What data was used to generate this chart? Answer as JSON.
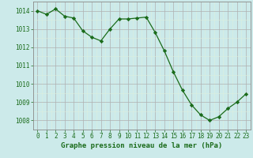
{
  "x": [
    0,
    1,
    2,
    3,
    4,
    5,
    6,
    7,
    8,
    9,
    10,
    11,
    12,
    13,
    14,
    15,
    16,
    17,
    18,
    19,
    20,
    21,
    22,
    23
  ],
  "y": [
    1014.0,
    1013.8,
    1014.1,
    1013.7,
    1013.6,
    1012.9,
    1012.55,
    1012.35,
    1013.0,
    1013.55,
    1013.55,
    1013.6,
    1013.65,
    1012.8,
    1011.8,
    1010.65,
    1009.65,
    1008.85,
    1008.3,
    1008.0,
    1008.2,
    1008.65,
    1009.0,
    1009.45
  ],
  "ylim": [
    1007.5,
    1014.5
  ],
  "yticks": [
    1008,
    1009,
    1010,
    1011,
    1012,
    1013,
    1014
  ],
  "xlim": [
    -0.5,
    23.5
  ],
  "xticks": [
    0,
    1,
    2,
    3,
    4,
    5,
    6,
    7,
    8,
    9,
    10,
    11,
    12,
    13,
    14,
    15,
    16,
    17,
    18,
    19,
    20,
    21,
    22,
    23
  ],
  "line_color": "#1a6b1a",
  "marker": "D",
  "marker_size": 2.2,
  "line_width": 0.9,
  "bg_color": "#cceaea",
  "grid_major_color": "#b0b0b0",
  "grid_minor_color": "#ddeedd",
  "xlabel": "Graphe pression niveau de la mer (hPa)",
  "xlabel_color": "#1a6b1a",
  "xlabel_fontsize": 6.5,
  "tick_color": "#1a6b1a",
  "tick_fontsize": 5.5,
  "spine_color": "#888888"
}
